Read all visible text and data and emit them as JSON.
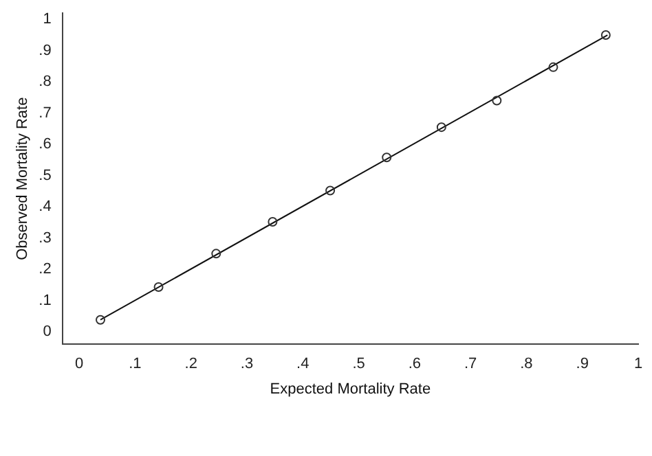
{
  "chart_data": {
    "type": "scatter",
    "xlabel": "Expected Mortality Rate",
    "ylabel": "Observed Mortality Rate",
    "xlim": [
      -0.03,
      1.0
    ],
    "ylim": [
      -0.04,
      1.02
    ],
    "xticks": [
      {
        "value": 0,
        "label": "0"
      },
      {
        "value": 0.1,
        "label": ".1"
      },
      {
        "value": 0.2,
        "label": ".2"
      },
      {
        "value": 0.3,
        "label": ".3"
      },
      {
        "value": 0.4,
        "label": ".4"
      },
      {
        "value": 0.5,
        "label": ".5"
      },
      {
        "value": 0.6,
        "label": ".6"
      },
      {
        "value": 0.7,
        "label": ".7"
      },
      {
        "value": 0.8,
        "label": ".8"
      },
      {
        "value": 0.9,
        "label": ".9"
      },
      {
        "value": 1,
        "label": "1"
      }
    ],
    "yticks": [
      {
        "value": 0,
        "label": "0"
      },
      {
        "value": 0.1,
        "label": ".1"
      },
      {
        "value": 0.2,
        "label": ".2"
      },
      {
        "value": 0.3,
        "label": ".3"
      },
      {
        "value": 0.4,
        "label": ".4"
      },
      {
        "value": 0.5,
        "label": ".5"
      },
      {
        "value": 0.6,
        "label": ".6"
      },
      {
        "value": 0.7,
        "label": ".7"
      },
      {
        "value": 0.8,
        "label": ".8"
      },
      {
        "value": 0.9,
        "label": ".9"
      },
      {
        "value": 1,
        "label": "1"
      }
    ],
    "grid": false,
    "legend": false,
    "series": [
      {
        "type": "scatter",
        "color": "#333333",
        "marker": "circle",
        "x": [
          0.038,
          0.142,
          0.245,
          0.346,
          0.449,
          0.55,
          0.648,
          0.747,
          0.848,
          0.942
        ],
        "values": [
          0.038,
          0.143,
          0.25,
          0.352,
          0.452,
          0.558,
          0.655,
          0.74,
          0.847,
          0.95
        ]
      },
      {
        "type": "line",
        "color": "#111111",
        "marker": "none",
        "line_style": "solid",
        "x": [
          0.038,
          0.945
        ],
        "values": [
          0.038,
          0.95
        ]
      }
    ]
  }
}
